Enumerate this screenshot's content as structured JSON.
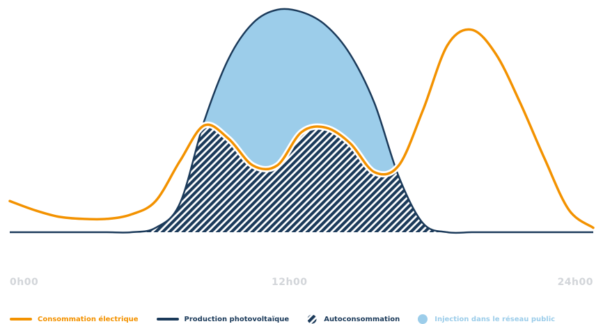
{
  "colors": {
    "consumption": "#f39200",
    "production": "#1b3a5a",
    "self_consumption": "#1b3a5a",
    "injection": "#9ccdea"
  },
  "chart_data": {
    "type": "area",
    "title": "",
    "xlabel": "",
    "ylabel": "",
    "x_ticks": [
      "0h00",
      "12h00",
      "24h00"
    ],
    "xlim": [
      0,
      24
    ],
    "ylim": [
      0,
      1
    ],
    "grid": false,
    "legend_position": "bottom",
    "x": [
      0,
      1,
      2,
      3,
      4,
      5,
      6,
      7,
      8,
      9,
      10,
      11,
      12,
      13,
      14,
      15,
      16,
      17,
      18,
      19,
      20,
      21,
      22,
      23,
      24
    ],
    "series": [
      {
        "name": "Consommation électrique",
        "values": [
          0.14,
          0.1,
          0.07,
          0.06,
          0.06,
          0.08,
          0.14,
          0.32,
          0.48,
          0.42,
          0.3,
          0.3,
          0.45,
          0.47,
          0.4,
          0.27,
          0.3,
          0.55,
          0.84,
          0.91,
          0.8,
          0.58,
          0.33,
          0.1,
          0.02
        ],
        "style": "line"
      },
      {
        "name": "Production photovoltaïque",
        "values": [
          0,
          0,
          0,
          0,
          0,
          0,
          0.02,
          0.13,
          0.5,
          0.78,
          0.94,
          1.0,
          0.99,
          0.93,
          0.8,
          0.58,
          0.25,
          0.04,
          0,
          0,
          0,
          0,
          0,
          0,
          0
        ],
        "style": "line"
      },
      {
        "name": "Autoconsommation",
        "style": "hatched-area"
      },
      {
        "name": "Injection dans le réseau public",
        "style": "area"
      }
    ]
  }
}
